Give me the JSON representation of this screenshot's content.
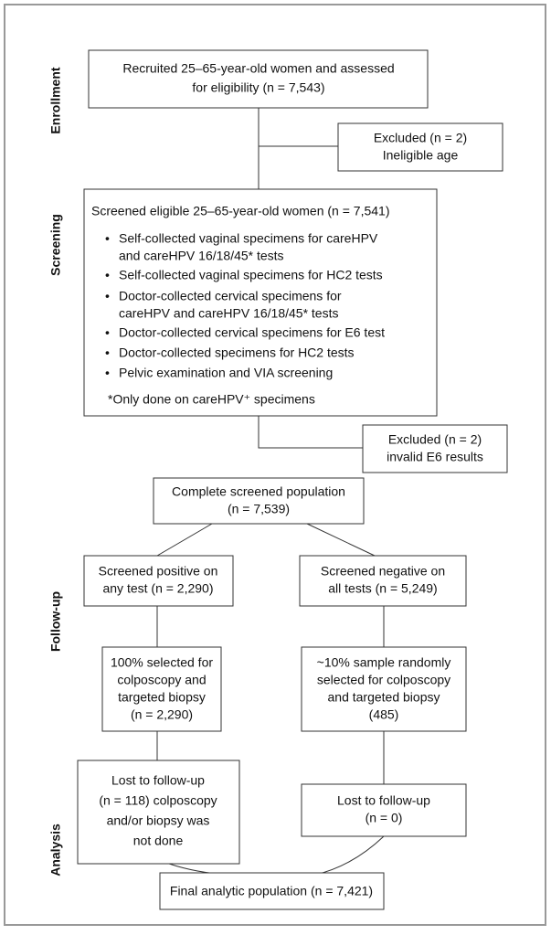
{
  "stages": [
    "Enrollment",
    "Screening",
    "Follow-up",
    "Analysis"
  ],
  "enrollment": {
    "lines": [
      "Recruited 25–65-year-old women and assessed",
      "for eligibility (n = 7,543)"
    ]
  },
  "excluded_age": {
    "lines": [
      "Excluded (n = 2)",
      "Ineligible age"
    ]
  },
  "screening": {
    "heading": "Screened eligible 25–65-year-old women  (n = 7,541)",
    "bullets": [
      [
        "Self-collected vaginal specimens for careHPV",
        "and careHPV 16/18/45* tests"
      ],
      [
        "Self-collected vaginal specimens for HC2 tests"
      ],
      [
        "Doctor-collected cervical specimens for",
        "careHPV and careHPV 16/18/45* tests"
      ],
      [
        "Doctor-collected cervical specimens for E6 test"
      ],
      [
        "Doctor-collected specimens for HC2 tests"
      ],
      [
        "Pelvic examination and VIA screening"
      ]
    ],
    "footnote": "*Only done on careHPV⁺ specimens"
  },
  "excluded_e6": {
    "lines": [
      "Excluded (n = 2)",
      "invalid E6 results"
    ]
  },
  "complete": {
    "lines": [
      "Complete screened population",
      "(n = 7,539)"
    ]
  },
  "positive": {
    "lines": [
      "Screened positive on",
      "any test (n = 2,290)"
    ]
  },
  "negative": {
    "lines": [
      "Screened negative on",
      "all tests (n = 5,249)"
    ]
  },
  "followup_positive": {
    "lines": [
      "100% selected for",
      "colposcopy and",
      "targeted biopsy",
      "(n = 2,290)"
    ]
  },
  "followup_negative": {
    "lines": [
      "~10% sample randomly",
      "selected for colposcopy",
      "and targeted biopsy",
      "(485)"
    ]
  },
  "lost_positive": {
    "lines": [
      "Lost to follow-up",
      "(n = 118) colposcopy",
      "and/or biopsy was",
      "not done"
    ]
  },
  "lost_negative": {
    "lines": [
      "Lost to follow-up",
      "(n = 0)"
    ]
  },
  "final": {
    "lines": [
      "Final analytic population (n = 7,421)"
    ]
  }
}
